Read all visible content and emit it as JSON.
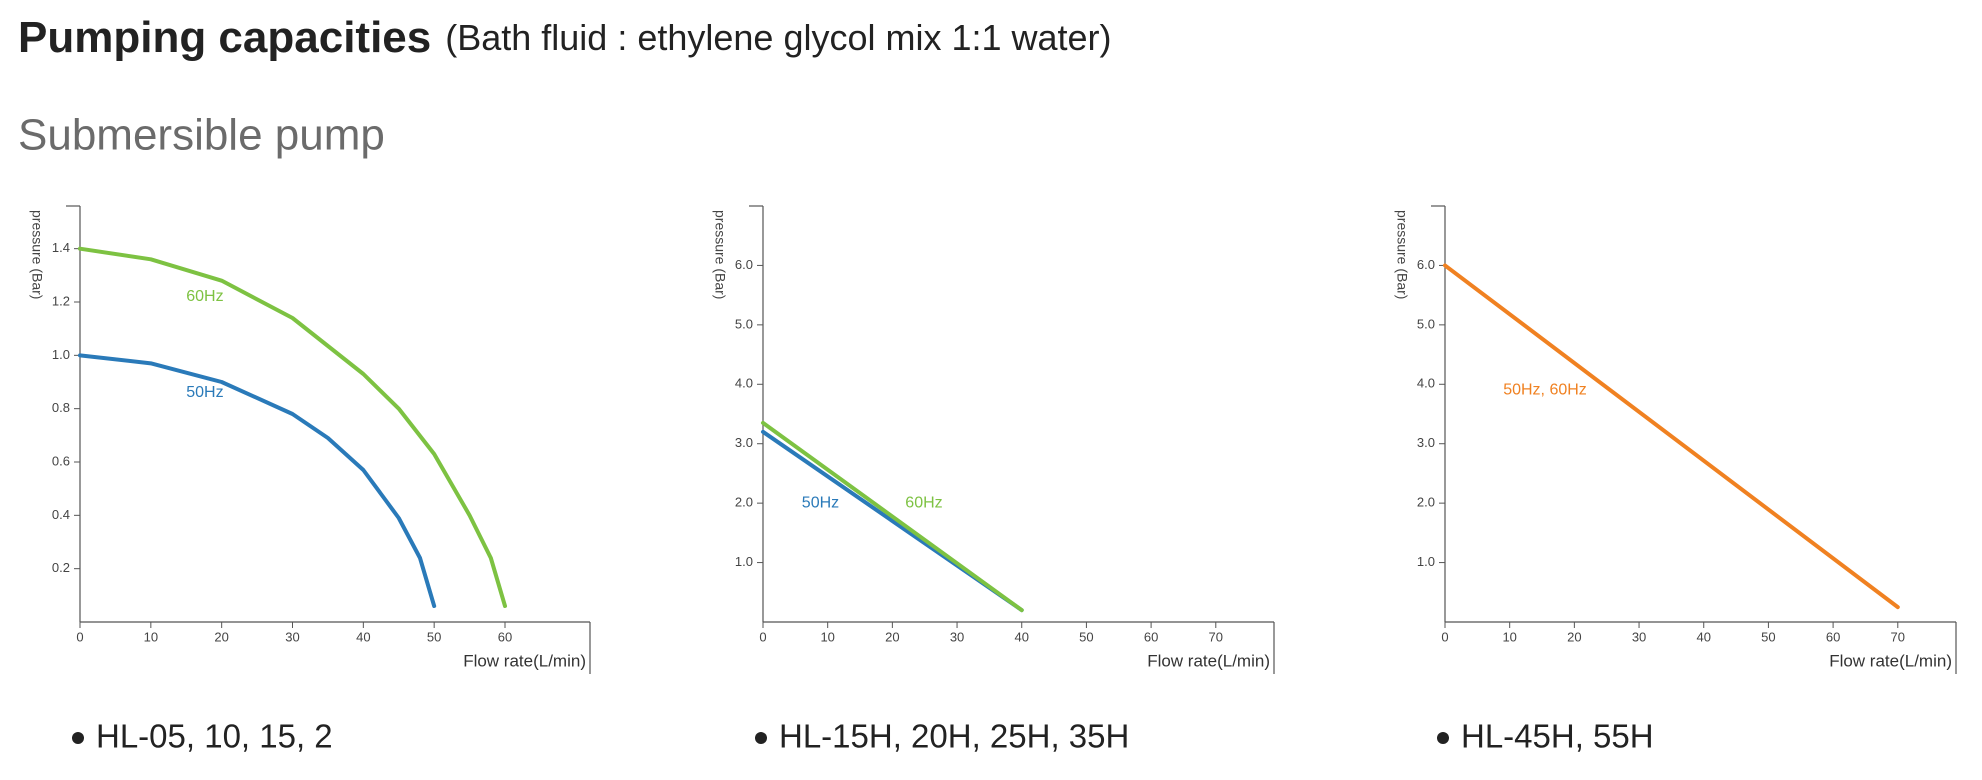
{
  "title": "Pumping capacities",
  "title_note": "(Bath fluid : ethylene glycol mix 1:1 water)",
  "section": "Submersible pump",
  "chart_data": [
    {
      "type": "line",
      "caption": "HL-05, 10, 15, 2",
      "xlabel": "Flow rate(L/min)",
      "ylabel": "pressure (Bar)",
      "xlim": [
        0,
        72
      ],
      "ylim": [
        0,
        1.56
      ],
      "xticks": [
        0,
        10,
        20,
        30,
        40,
        50,
        60
      ],
      "yticks": [
        0.2,
        0.4,
        0.6,
        0.8,
        {
          "value": 1,
          "label": "1.0"
        },
        1.2,
        1.4
      ],
      "series": [
        {
          "name": "60Hz",
          "color": "#7dc242",
          "x": [
            0,
            10,
            20,
            30,
            40,
            45,
            50,
            55,
            58,
            60
          ],
          "values": [
            1.4,
            1.36,
            1.28,
            1.14,
            0.93,
            0.8,
            0.63,
            0.4,
            0.24,
            0.06
          ]
        },
        {
          "name": "50Hz",
          "color": "#2a7ab9",
          "x": [
            0,
            10,
            20,
            30,
            35,
            40,
            45,
            48,
            50
          ],
          "values": [
            1.0,
            0.97,
            0.9,
            0.78,
            0.69,
            0.57,
            0.39,
            0.24,
            0.06
          ]
        }
      ]
    },
    {
      "type": "line",
      "caption": "HL-15H, 20H, 25H, 35H",
      "xlabel": "Flow rate(L/min)",
      "ylabel": "pressure (Bar)",
      "xlim": [
        0,
        79
      ],
      "ylim": [
        0,
        7
      ],
      "xticks": [
        0,
        10,
        20,
        30,
        40,
        50,
        60,
        70
      ],
      "yticks": [
        {
          "value": 1,
          "label": "1.0"
        },
        {
          "value": 2,
          "label": "2.0"
        },
        {
          "value": 3,
          "label": "3.0"
        },
        {
          "value": 4,
          "label": "4.0"
        },
        {
          "value": 5,
          "label": "5.0"
        },
        {
          "value": 6,
          "label": "6.0"
        }
      ],
      "series": [
        {
          "name": "50Hz",
          "color": "#2a7ab9",
          "x": [
            0,
            40
          ],
          "values": [
            3.2,
            0.2
          ]
        },
        {
          "name": "60Hz",
          "color": "#7dc242",
          "x": [
            0,
            40
          ],
          "values": [
            3.35,
            0.2
          ]
        }
      ]
    },
    {
      "type": "line",
      "caption": "HL-45H, 55H",
      "xlabel": "Flow rate(L/min)",
      "ylabel": "pressure (Bar)",
      "xlim": [
        0,
        79
      ],
      "ylim": [
        0,
        7
      ],
      "xticks": [
        0,
        10,
        20,
        30,
        40,
        50,
        60,
        70
      ],
      "yticks": [
        {
          "value": 1,
          "label": "1.0"
        },
        {
          "value": 2,
          "label": "2.0"
        },
        {
          "value": 3,
          "label": "3.0"
        },
        {
          "value": 4,
          "label": "4.0"
        },
        {
          "value": 5,
          "label": "5.0"
        },
        {
          "value": 6,
          "label": "6.0"
        }
      ],
      "series": [
        {
          "name": "50Hz, 60Hz",
          "color": "#f08121",
          "x": [
            0,
            70
          ],
          "values": [
            6.0,
            0.25
          ]
        }
      ]
    }
  ]
}
